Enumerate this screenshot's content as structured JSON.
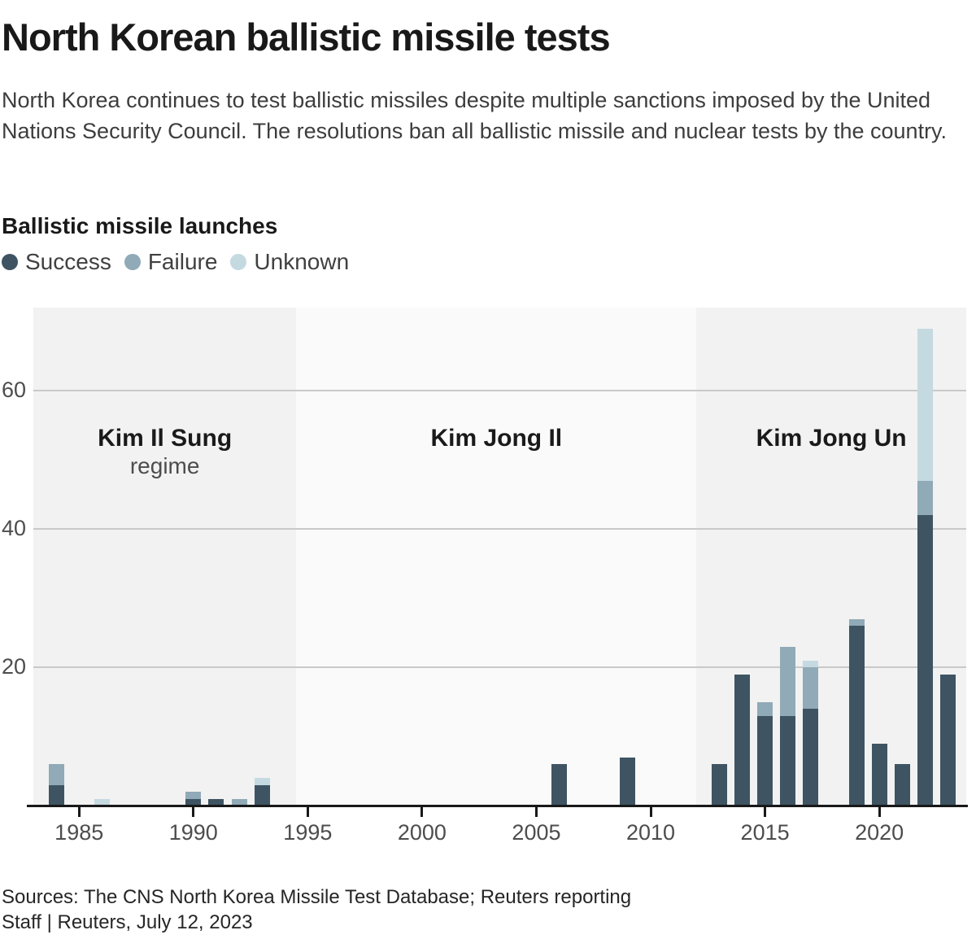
{
  "header": {
    "title": "North Korean ballistic missile tests",
    "subtitle": "North Korea continues to test ballistic missiles despite multiple sanctions imposed by the United Nations Security Council. The resolutions ban all ballistic missile and nuclear tests by the country."
  },
  "chart": {
    "section_title": "Ballistic missile launches",
    "legend": [
      {
        "label": "Success",
        "color": "#3e5463"
      },
      {
        "label": "Failure",
        "color": "#90aab7"
      },
      {
        "label": "Unknown",
        "color": "#c5d9e0"
      }
    ]
  },
  "chart_data": {
    "type": "bar",
    "stacked": true,
    "title": "Ballistic missile launches",
    "xlabel": "",
    "ylabel": "",
    "x": [
      1984,
      1986,
      1990,
      1991,
      1992,
      1993,
      2006,
      2009,
      2013,
      2014,
      2015,
      2016,
      2017,
      2019,
      2020,
      2021,
      2022,
      2023
    ],
    "series": [
      {
        "name": "Success",
        "color": "#3e5463",
        "values": [
          3,
          0,
          1,
          1,
          0,
          3,
          6,
          7,
          6,
          19,
          13,
          13,
          14,
          26,
          9,
          6,
          42,
          19
        ]
      },
      {
        "name": "Failure",
        "color": "#90aab7",
        "values": [
          3,
          0,
          1,
          0,
          1,
          0,
          0,
          0,
          0,
          0,
          2,
          10,
          6,
          1,
          0,
          0,
          5,
          0
        ]
      },
      {
        "name": "Unknown",
        "color": "#c5d9e0",
        "values": [
          0,
          1,
          0,
          0,
          0,
          1,
          0,
          0,
          0,
          0,
          0,
          0,
          1,
          0,
          0,
          0,
          22,
          0
        ]
      }
    ],
    "x_domain": [
      1983,
      2023.8
    ],
    "x_ticks": [
      1985,
      1990,
      1995,
      2000,
      2005,
      2010,
      2015,
      2020
    ],
    "ylim": [
      0,
      72
    ],
    "y_ticks": [
      20,
      40,
      60
    ],
    "grid": "horizontal",
    "legend_position": "top-left",
    "regimes": [
      {
        "label": "Kim Il Sung",
        "sublabel": "regime",
        "start": 1983,
        "end": 1994.5,
        "shade": "#f2f2f2"
      },
      {
        "label": "Kim Jong Il",
        "sublabel": "",
        "start": 1994.5,
        "end": 2012,
        "shade": "#fafafa"
      },
      {
        "label": "Kim Jong Un",
        "sublabel": "",
        "start": 2012,
        "end": 2023.8,
        "shade": "#f2f2f2"
      }
    ]
  },
  "footer": {
    "sources": "Sources: The CNS North Korea Missile Test Database; Reuters reporting",
    "byline": "Staff | Reuters, July 12, 2023"
  }
}
